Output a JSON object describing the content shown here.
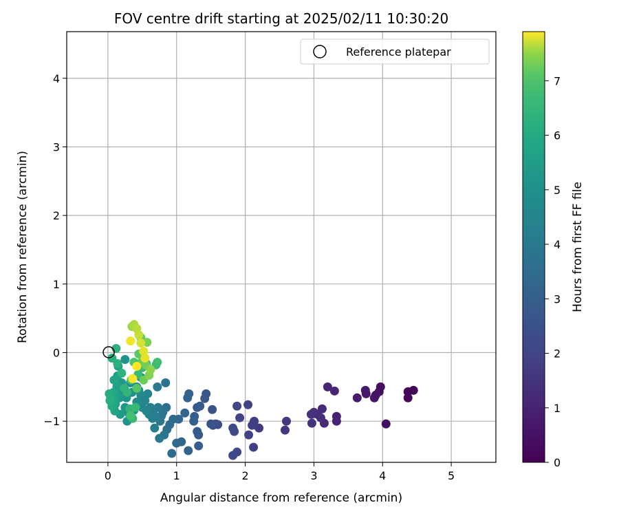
{
  "chart_data": {
    "type": "scatter",
    "title": "FOV centre drift starting at 2025/02/11 10:30:20",
    "xlabel": "Angular distance from reference (arcmin)",
    "ylabel": "Rotation from reference (arcmin)",
    "xlim": [
      -0.6,
      5.65
    ],
    "ylim": [
      -1.6,
      4.68
    ],
    "xticks": [
      0,
      1,
      2,
      3,
      4,
      5
    ],
    "yticks": [
      -1,
      0,
      1,
      2,
      3,
      4
    ],
    "ytick_labels": [
      "−1",
      "0",
      "1",
      "2",
      "3",
      "4"
    ],
    "grid": true,
    "legend": {
      "placement": "top-right",
      "entries": [
        "Reference platepar"
      ]
    },
    "reference_point": {
      "x": 0,
      "y": 0,
      "label": "Reference platepar"
    },
    "colorbar": {
      "label": "Hours from first FF file",
      "range": [
        0,
        7.9
      ],
      "ticks": [
        0,
        1,
        2,
        3,
        4,
        5,
        6,
        7
      ],
      "colormap": "viridis"
    },
    "series": [
      {
        "points": [
          [
            4.45,
            -0.55,
            0.05
          ],
          [
            4.37,
            -0.57,
            0.1
          ],
          [
            4.37,
            -0.66,
            0.15
          ],
          [
            4.05,
            -1.04,
            0.3
          ],
          [
            3.97,
            -0.5,
            0.4
          ],
          [
            3.95,
            -0.57,
            0.45
          ],
          [
            3.9,
            -0.62,
            0.5
          ],
          [
            3.88,
            -0.66,
            0.55
          ],
          [
            3.76,
            -0.6,
            0.65
          ],
          [
            3.75,
            -0.55,
            0.7
          ],
          [
            3.63,
            -0.66,
            0.8
          ],
          [
            3.33,
            -0.93,
            0.95
          ],
          [
            3.33,
            -1.0,
            1.0
          ],
          [
            3.3,
            -0.56,
            1.05
          ],
          [
            3.2,
            -0.5,
            1.1
          ],
          [
            3.15,
            -1.03,
            1.15
          ],
          [
            3.12,
            -0.82,
            1.2
          ],
          [
            3.1,
            -0.95,
            1.25
          ],
          [
            3.05,
            -0.9,
            1.3
          ],
          [
            3.0,
            -0.87,
            1.35
          ],
          [
            2.96,
            -0.9,
            1.4
          ],
          [
            2.97,
            -1.03,
            1.45
          ],
          [
            2.6,
            -1.0,
            1.55
          ],
          [
            2.58,
            -1.13,
            1.6
          ],
          [
            2.2,
            -1.1,
            1.7
          ],
          [
            2.13,
            -1.0,
            1.75
          ],
          [
            2.12,
            -1.38,
            1.8
          ],
          [
            2.1,
            -1.06,
            1.85
          ],
          [
            2.05,
            -1.2,
            1.9
          ],
          [
            2.04,
            -0.76,
            1.95
          ],
          [
            1.92,
            -0.95,
            2.0
          ],
          [
            1.88,
            -0.78,
            2.05
          ],
          [
            1.88,
            -1.45,
            2.1
          ],
          [
            1.84,
            -1.15,
            2.15
          ],
          [
            1.82,
            -1.1,
            2.2
          ],
          [
            1.82,
            -1.5,
            2.25
          ],
          [
            1.6,
            -1.05,
            2.35
          ],
          [
            1.57,
            -1.04,
            2.4
          ],
          [
            1.53,
            -1.06,
            2.45
          ],
          [
            1.52,
            -0.83,
            2.5
          ],
          [
            1.5,
            -1.04,
            2.55
          ],
          [
            1.43,
            -0.6,
            2.65
          ],
          [
            1.41,
            -0.67,
            2.7
          ],
          [
            1.34,
            -0.78,
            2.75
          ],
          [
            1.32,
            -1.2,
            2.8
          ],
          [
            1.3,
            -0.8,
            2.85
          ],
          [
            1.3,
            -1.15,
            2.9
          ],
          [
            1.32,
            -1.36,
            2.95
          ],
          [
            1.26,
            -0.93,
            3.0
          ],
          [
            1.25,
            -1.0,
            3.05
          ],
          [
            1.18,
            -0.6,
            3.1
          ],
          [
            1.16,
            -0.66,
            3.15
          ],
          [
            1.17,
            -1.43,
            3.2
          ],
          [
            1.12,
            -0.88,
            3.25
          ],
          [
            1.07,
            -1.3,
            3.3
          ],
          [
            1.03,
            -0.97,
            3.35
          ],
          [
            1.0,
            -1.32,
            3.4
          ],
          [
            0.95,
            -0.97,
            3.45
          ],
          [
            0.93,
            -1.47,
            3.5
          ],
          [
            0.9,
            -1.05,
            3.55
          ],
          [
            0.86,
            -1.12,
            3.6
          ],
          [
            0.85,
            -0.8,
            3.65
          ],
          [
            0.84,
            -0.44,
            3.7
          ],
          [
            0.82,
            -1.2,
            3.75
          ],
          [
            0.8,
            -0.87,
            3.8
          ],
          [
            0.78,
            -0.92,
            3.85
          ],
          [
            0.76,
            -1.0,
            3.9
          ],
          [
            0.75,
            -1.25,
            3.95
          ],
          [
            0.73,
            -0.8,
            4.0
          ],
          [
            0.72,
            -0.5,
            4.05
          ],
          [
            0.7,
            -0.94,
            4.1
          ],
          [
            0.68,
            -1.1,
            4.15
          ],
          [
            0.66,
            -0.86,
            4.2
          ],
          [
            0.65,
            -0.96,
            4.25
          ],
          [
            0.62,
            -0.8,
            4.3
          ],
          [
            0.6,
            -0.9,
            4.35
          ],
          [
            0.58,
            -0.6,
            4.4
          ],
          [
            0.56,
            -0.85,
            4.45
          ],
          [
            0.54,
            -0.7,
            4.5
          ],
          [
            0.5,
            -0.8,
            4.55
          ],
          [
            0.48,
            -0.62,
            4.6
          ],
          [
            0.48,
            -0.36,
            4.65
          ],
          [
            0.45,
            -0.55,
            4.7
          ],
          [
            0.42,
            -0.72,
            4.75
          ],
          [
            0.42,
            -0.5,
            4.8
          ],
          [
            0.38,
            -0.84,
            4.85
          ],
          [
            0.35,
            -0.58,
            4.9
          ],
          [
            0.33,
            -0.44,
            4.95
          ],
          [
            0.3,
            -0.88,
            5.0
          ],
          [
            0.28,
            -1.0,
            5.05
          ],
          [
            0.27,
            -0.66,
            5.1
          ],
          [
            0.25,
            -0.1,
            5.15
          ],
          [
            0.25,
            -0.8,
            5.2
          ],
          [
            0.22,
            -0.56,
            5.25
          ],
          [
            0.2,
            -0.44,
            5.3
          ],
          [
            0.18,
            -0.9,
            5.35
          ],
          [
            0.17,
            -0.66,
            5.4
          ],
          [
            0.15,
            -0.2,
            5.5
          ],
          [
            0.14,
            -0.34,
            5.55
          ],
          [
            0.13,
            -0.5,
            5.6
          ],
          [
            0.12,
            -0.62,
            5.65
          ],
          [
            0.11,
            -0.75,
            5.7
          ],
          [
            0.1,
            -0.85,
            5.75
          ],
          [
            0.09,
            -0.4,
            5.8
          ],
          [
            0.08,
            -0.58,
            5.85
          ],
          [
            0.07,
            -0.7,
            5.9
          ],
          [
            0.06,
            -0.78,
            5.95
          ],
          [
            0.05,
            -0.62,
            6.0
          ],
          [
            0.04,
            -0.66,
            6.05
          ],
          [
            0.03,
            -0.7,
            6.1
          ],
          [
            0.02,
            -0.6,
            6.15
          ],
          [
            0.06,
            -0.08,
            6.2
          ],
          [
            0.12,
            0.06,
            6.25
          ],
          [
            0.14,
            -0.16,
            6.3
          ],
          [
            0.2,
            -0.3,
            6.35
          ],
          [
            0.24,
            -0.52,
            6.4
          ],
          [
            0.28,
            -0.58,
            6.45
          ],
          [
            0.32,
            -0.82,
            6.5
          ],
          [
            0.36,
            -0.96,
            6.55
          ],
          [
            0.4,
            -0.8,
            6.6
          ],
          [
            0.44,
            -0.32,
            6.65
          ],
          [
            0.5,
            -0.22,
            6.7
          ],
          [
            0.56,
            -0.16,
            6.75
          ],
          [
            0.7,
            -0.18,
            6.8
          ],
          [
            0.72,
            -0.14,
            6.85
          ],
          [
            0.33,
            -0.92,
            6.95
          ],
          [
            0.34,
            -0.4,
            7.0
          ],
          [
            0.38,
            -0.14,
            7.05
          ],
          [
            0.42,
            -0.52,
            7.1
          ],
          [
            0.45,
            -0.02,
            7.15
          ],
          [
            0.48,
            0.22,
            7.2
          ],
          [
            0.5,
            -0.12,
            7.25
          ],
          [
            0.52,
            -0.4,
            7.3
          ],
          [
            0.55,
            -0.18,
            7.35
          ],
          [
            0.57,
            0.15,
            7.4
          ],
          [
            0.6,
            -0.33,
            7.45
          ],
          [
            0.62,
            -0.25,
            7.5
          ],
          [
            0.35,
            0.38,
            7.55
          ],
          [
            0.38,
            0.41,
            7.6
          ],
          [
            0.42,
            0.35,
            7.65
          ],
          [
            0.45,
            0.26,
            7.7
          ],
          [
            0.48,
            0.14,
            7.75
          ],
          [
            0.52,
            0.02,
            7.8
          ],
          [
            0.54,
            -0.08,
            7.82
          ],
          [
            0.33,
            0.17,
            7.85
          ],
          [
            0.36,
            -0.38,
            7.87
          ],
          [
            0.42,
            -0.2,
            7.9
          ]
        ]
      }
    ]
  },
  "colors": {
    "reference_marker": "#000000",
    "grid": "#b0b0b0",
    "legend_border": "#cccccc"
  }
}
